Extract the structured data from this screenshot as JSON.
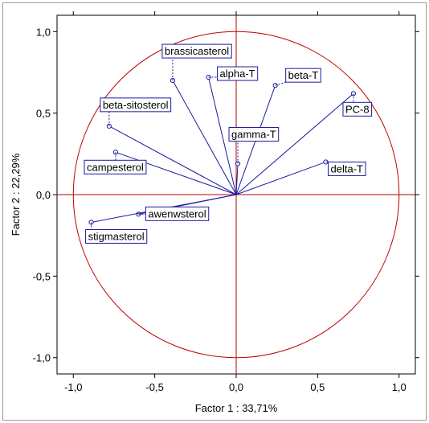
{
  "chart_data": {
    "type": "scatter",
    "subtype": "pca-correlation-circle",
    "title": "",
    "xlabel": "Factor 1 : 33,71%",
    "ylabel": "Factor 2 : 22,29%",
    "xlim": [
      -1.1,
      1.1
    ],
    "ylim": [
      -1.1,
      1.1
    ],
    "xticks": [
      "-1,0",
      "-0,5",
      "0,0",
      "0,5",
      "1,0"
    ],
    "yticks": [
      "1,0",
      "0,5",
      "0,0",
      "-0,5",
      "-1,0"
    ],
    "grid": false,
    "unit_circle": true,
    "colors": {
      "vectors": "#1a1aa0",
      "circle": "#c00000",
      "axes": "#c00000"
    },
    "points": [
      {
        "name": "brassicasterol",
        "x": -0.39,
        "y": 0.7
      },
      {
        "name": "alpha-T",
        "x": -0.17,
        "y": 0.72
      },
      {
        "name": "beta-T",
        "x": 0.24,
        "y": 0.67
      },
      {
        "name": "PC-8",
        "x": 0.72,
        "y": 0.62
      },
      {
        "name": "beta-sitosterol",
        "x": -0.78,
        "y": 0.42
      },
      {
        "name": "campesterol",
        "x": -0.74,
        "y": 0.26
      },
      {
        "name": "gamma-T",
        "x": 0.01,
        "y": 0.19
      },
      {
        "name": "delta-T",
        "x": 0.55,
        "y": 0.2
      },
      {
        "name": "awenwsterol",
        "x": -0.6,
        "y": -0.12
      },
      {
        "name": "stigmasterol",
        "x": -0.89,
        "y": -0.17
      }
    ]
  }
}
